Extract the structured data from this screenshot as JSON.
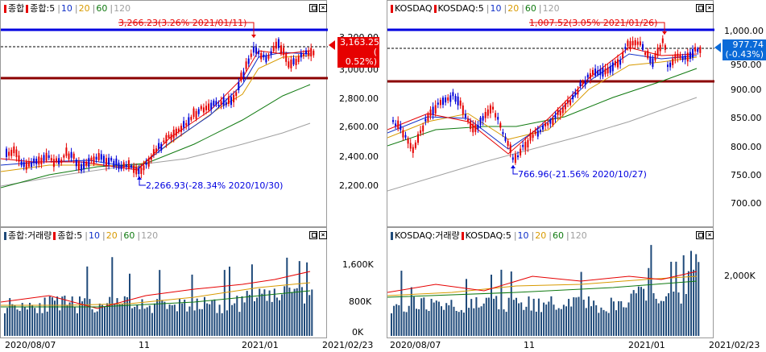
{
  "left": {
    "price_legend": {
      "name": "종합",
      "ma_name": "종합:5",
      "ma10": "10",
      "ma20": "20",
      "ma60": "60",
      "ma120": "120"
    },
    "volume_legend": {
      "name": "종합:거래량",
      "ma_name": "종합:5",
      "ma10": "10",
      "ma20": "20",
      "ma60": "60",
      "ma120": "120"
    },
    "high_annotation": "3,266.23(3.26% 2021/01/11)",
    "low_annotation": "2,266.93(-28.34% 2020/10/30)",
    "current_price": "3,163.25",
    "current_change": "( 0.52%)",
    "price_ticks": [
      "3,200.00",
      "3,000.00",
      "2,800.00",
      "2,600.00",
      "2,400.00",
      "2,200.00"
    ],
    "volume_ticks": [
      "1,600K",
      "800K",
      "0K"
    ],
    "date_ticks": [
      "2020/08/07",
      "11",
      "2021/01",
      "2021/02/23"
    ]
  },
  "right": {
    "price_legend": {
      "name": "KOSDAQ",
      "ma_name": "KOSDAQ:5",
      "ma10": "10",
      "ma20": "20",
      "ma60": "60",
      "ma120": "120"
    },
    "volume_legend": {
      "name": "KOSDAQ:거래량",
      "ma_name": "KOSDAQ:5",
      "ma10": "10",
      "ma20": "20",
      "ma60": "60",
      "ma120": "120"
    },
    "high_annotation": "1,007.52(3.05% 2021/01/26)",
    "low_annotation": "766.96(-21.56% 2020/10/27)",
    "current_price": "977.74",
    "current_change": "(-0.43%)",
    "price_ticks": [
      "1,000.00",
      "950.00",
      "900.00",
      "850.00",
      "800.00",
      "750.00",
      "700.00"
    ],
    "volume_ticks": [
      "2,000K"
    ],
    "date_ticks": [
      "2020/08/07",
      "11",
      "2021/01",
      "2021/02/23"
    ]
  },
  "colors": {
    "up": "#e60000",
    "down": "#0000d8",
    "ma5": "#e60000",
    "ma10": "#1030c8",
    "ma20": "#d89a00",
    "ma60": "#107a10",
    "ma120": "#a0a0a0",
    "high_line": "#0000e0",
    "low_line": "#8b0000",
    "volume": "#1f4a7a"
  },
  "icons": {
    "minimize": "minimize-icon",
    "close": "close-icon",
    "price_marker": "triangle-left-icon"
  }
}
